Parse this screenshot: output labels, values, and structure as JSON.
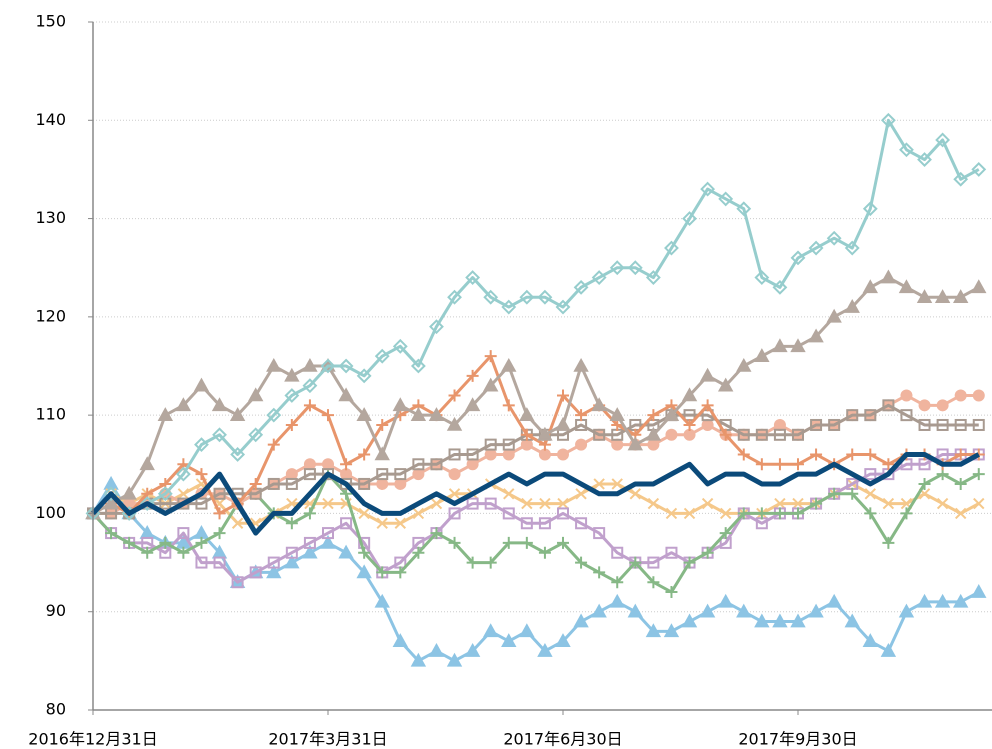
{
  "chart_data": {
    "type": "line",
    "categories": [
      "2016年12月31日",
      null,
      null,
      null,
      null,
      null,
      null,
      null,
      null,
      null,
      null,
      null,
      null,
      "2017年3月31日",
      null,
      null,
      null,
      null,
      null,
      null,
      null,
      null,
      null,
      null,
      null,
      null,
      "2017年6月30日",
      null,
      null,
      null,
      null,
      null,
      null,
      null,
      null,
      null,
      null,
      null,
      null,
      "2017年9月30日",
      null,
      null,
      null,
      null,
      null,
      null,
      null,
      null,
      null,
      null
    ],
    "ylim": [
      80,
      150
    ],
    "yticks": [
      80,
      90,
      100,
      110,
      120,
      130,
      140,
      150
    ],
    "grid": true,
    "series": [
      {
        "color": "#8cc4e4",
        "marker": "triangle",
        "values": [
          100,
          103,
          100,
          98,
          97,
          97,
          98,
          96,
          93,
          94,
          94,
          95,
          96,
          97,
          96,
          94,
          91,
          87,
          85,
          86,
          85,
          86,
          88,
          87,
          88,
          86,
          87,
          89,
          90,
          91,
          90,
          88,
          88,
          89,
          90,
          91,
          90,
          89,
          89,
          89,
          90,
          91,
          89,
          87,
          86,
          90,
          91,
          91,
          91,
          92
        ]
      },
      {
        "color": "#f5c88a",
        "marker": "x",
        "values": [
          100,
          102,
          101,
          102,
          101,
          102,
          103,
          101,
          99,
          99,
          100,
          101,
          101,
          101,
          101,
          100,
          99,
          99,
          100,
          101,
          102,
          102,
          103,
          102,
          101,
          101,
          101,
          102,
          103,
          103,
          102,
          101,
          100,
          100,
          101,
          100,
          100,
          100,
          101,
          101,
          101,
          102,
          103,
          102,
          101,
          101,
          102,
          101,
          100,
          101
        ]
      },
      {
        "color": "#c0a0cc",
        "marker": "square",
        "values": [
          100,
          98,
          97,
          97,
          96,
          98,
          95,
          95,
          93,
          94,
          95,
          96,
          97,
          98,
          99,
          97,
          94,
          95,
          97,
          98,
          100,
          101,
          101,
          100,
          99,
          99,
          100,
          99,
          98,
          96,
          95,
          95,
          96,
          95,
          96,
          97,
          100,
          99,
          100,
          100,
          101,
          102,
          103,
          104,
          104,
          105,
          105,
          106,
          106,
          106
        ]
      },
      {
        "color": "#86b886",
        "marker": "plus",
        "values": [
          100,
          98,
          97,
          96,
          97,
          96,
          97,
          98,
          101,
          102,
          100,
          99,
          100,
          104,
          102,
          96,
          94,
          94,
          96,
          98,
          97,
          95,
          95,
          97,
          97,
          96,
          97,
          95,
          94,
          93,
          95,
          93,
          92,
          95,
          96,
          98,
          100,
          100,
          100,
          100,
          101,
          102,
          102,
          100,
          97,
          100,
          103,
          104,
          103,
          104
        ]
      },
      {
        "color": "#f0b49e",
        "marker": "circle",
        "values": [
          100,
          100,
          101,
          101,
          102,
          101,
          102,
          102,
          101,
          102,
          103,
          104,
          105,
          105,
          104,
          103,
          103,
          103,
          104,
          105,
          104,
          105,
          106,
          106,
          107,
          106,
          106,
          107,
          108,
          107,
          107,
          107,
          108,
          108,
          109,
          108,
          108,
          108,
          109,
          108,
          109,
          109,
          110,
          110,
          111,
          112,
          111,
          111,
          112,
          112
        ]
      },
      {
        "color": "#a89a90",
        "marker": "square",
        "values": [
          100,
          100,
          100,
          101,
          101,
          101,
          101,
          102,
          102,
          102,
          103,
          103,
          104,
          104,
          103,
          103,
          104,
          104,
          105,
          105,
          106,
          106,
          107,
          107,
          108,
          108,
          108,
          109,
          108,
          108,
          109,
          109,
          110,
          110,
          110,
          109,
          108,
          108,
          108,
          108,
          109,
          109,
          110,
          110,
          111,
          110,
          109,
          109,
          109,
          109
        ]
      },
      {
        "color": "#e8956b",
        "marker": "plus",
        "values": [
          100,
          101,
          100,
          102,
          103,
          105,
          104,
          100,
          101,
          103,
          107,
          109,
          111,
          110,
          105,
          106,
          109,
          110,
          111,
          110,
          112,
          114,
          116,
          111,
          108,
          107,
          112,
          110,
          111,
          109,
          108,
          110,
          111,
          109,
          111,
          108,
          106,
          105,
          105,
          105,
          106,
          105,
          106,
          106,
          105,
          106,
          106,
          105,
          106,
          106
        ]
      },
      {
        "color": "#b4a79e",
        "marker": "triangle",
        "values": [
          100,
          101,
          102,
          105,
          110,
          111,
          113,
          111,
          110,
          112,
          115,
          114,
          115,
          115,
          112,
          110,
          106,
          111,
          110,
          110,
          109,
          111,
          113,
          115,
          110,
          108,
          109,
          115,
          111,
          110,
          107,
          108,
          110,
          112,
          114,
          113,
          115,
          116,
          117,
          117,
          118,
          120,
          121,
          123,
          124,
          123,
          122,
          122,
          122,
          123
        ]
      },
      {
        "color": "#96cdcd",
        "marker": "diamond",
        "values": [
          100,
          102,
          100,
          101,
          102,
          104,
          107,
          108,
          106,
          108,
          110,
          112,
          113,
          115,
          115,
          114,
          116,
          117,
          115,
          119,
          122,
          124,
          122,
          121,
          122,
          122,
          121,
          123,
          124,
          125,
          125,
          124,
          127,
          130,
          133,
          132,
          131,
          124,
          123,
          126,
          127,
          128,
          127,
          131,
          140,
          137,
          136,
          138,
          134,
          135
        ]
      },
      {
        "color": "#0b4a7a",
        "marker": "none",
        "values": [
          100,
          102,
          100,
          101,
          100,
          101,
          102,
          104,
          101,
          98,
          100,
          100,
          102,
          104,
          103,
          101,
          100,
          100,
          101,
          102,
          101,
          102,
          103,
          104,
          103,
          104,
          104,
          103,
          102,
          102,
          103,
          103,
          104,
          105,
          103,
          104,
          104,
          103,
          103,
          104,
          104,
          105,
          104,
          103,
          104,
          106,
          106,
          105,
          105,
          106
        ]
      }
    ]
  }
}
